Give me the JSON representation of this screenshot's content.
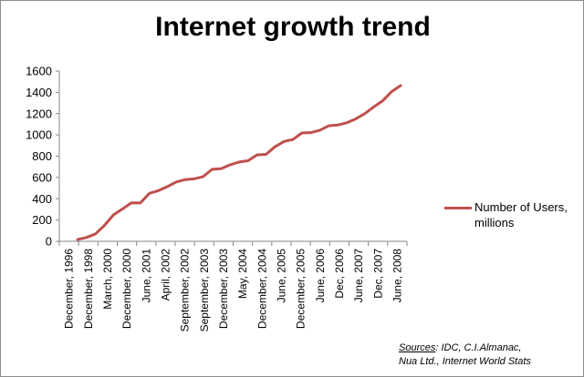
{
  "chart_data": {
    "type": "line",
    "title": "Internet growth trend",
    "xlabel": "",
    "ylabel": "",
    "ylim": [
      0,
      1600
    ],
    "yticks": [
      0,
      200,
      400,
      600,
      800,
      1000,
      1200,
      1400,
      1600
    ],
    "x_tick_labels": [
      "December, 1996",
      "December, 1998",
      "March, 2000",
      "December, 2000",
      "June, 2001",
      "April, 2002",
      "September, 2002",
      "September, 2003",
      "December, 2003",
      "May, 2004",
      "December, 2004",
      "June, 2005",
      "December, 2005",
      "June, 2006",
      "Dec, 2006",
      "June, 2007",
      "Dec, 2007",
      "June, 2008"
    ],
    "grid": false,
    "legend_position": "right",
    "series": [
      {
        "name": "Number of Users, millions",
        "color": "#c0504d",
        "values": [
          16,
          36,
          70,
          150,
          248,
          304,
          361,
          360,
          451,
          476,
          513,
          558,
          580,
          587,
          608,
          677,
          682,
          719,
          745,
          757,
          812,
          817,
          888,
          938,
          957,
          1018,
          1022,
          1043,
          1086,
          1093,
          1114,
          1150,
          1200,
          1262,
          1319,
          1407,
          1463
        ]
      }
    ]
  },
  "source_note": {
    "label": "Sources",
    "text_line1": ": IDC, C.I.Almanac,",
    "text_line2": "Nua Ltd., Internet World Stats"
  }
}
